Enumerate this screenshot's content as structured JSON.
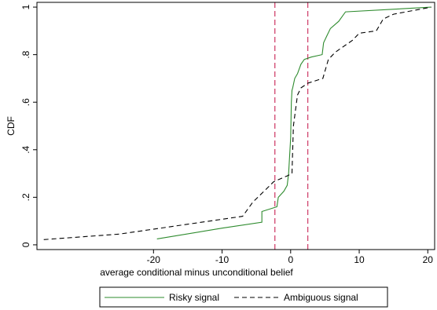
{
  "chart_data": {
    "type": "line",
    "xlabel": "average conditional minus unconditional belief",
    "ylabel": "CDF",
    "xlim": [
      -37,
      21
    ],
    "ylim": [
      -0.02,
      1.02
    ],
    "x_ticks": [
      -20,
      -10,
      0,
      10,
      20
    ],
    "x_tick_labels": [
      "-20",
      "-10",
      "0",
      "10",
      "20"
    ],
    "y_ticks": [
      0,
      0.2,
      0.4,
      0.6,
      0.8,
      1
    ],
    "y_tick_labels": [
      "0",
      ".2",
      ".4",
      ".6",
      ".8",
      "1"
    ],
    "grid": false,
    "legend_position": "bottom",
    "reference_lines": {
      "x": [
        -2.3,
        2.5
      ],
      "color": "#d0436e",
      "style": "dashed"
    },
    "series": [
      {
        "name": "Risky signal",
        "color": "#2e8b2e",
        "style": "solid",
        "points": [
          [
            -19.5,
            0.025
          ],
          [
            -10,
            0.07
          ],
          [
            -4.2,
            0.095
          ],
          [
            -4.2,
            0.14
          ],
          [
            -2,
            0.16
          ],
          [
            -1.8,
            0.2
          ],
          [
            -1,
            0.225
          ],
          [
            -0.5,
            0.25
          ],
          [
            -0.3,
            0.3
          ],
          [
            0,
            0.45
          ],
          [
            0.1,
            0.6
          ],
          [
            0.2,
            0.65
          ],
          [
            0.3,
            0.66
          ],
          [
            0.6,
            0.7
          ],
          [
            1,
            0.72
          ],
          [
            1.5,
            0.76
          ],
          [
            2,
            0.78
          ],
          [
            3,
            0.79
          ],
          [
            4.6,
            0.8
          ],
          [
            4.8,
            0.85
          ],
          [
            5.3,
            0.88
          ],
          [
            5.8,
            0.91
          ],
          [
            7,
            0.94
          ],
          [
            8,
            0.98
          ],
          [
            20.5,
            1.0
          ]
        ]
      },
      {
        "name": "Ambiguous signal",
        "color": "#000000",
        "style": "dashed",
        "points": [
          [
            -36,
            0.022
          ],
          [
            -25,
            0.045
          ],
          [
            -7,
            0.12
          ],
          [
            -5.5,
            0.18
          ],
          [
            -3,
            0.25
          ],
          [
            -2.5,
            0.265
          ],
          [
            -0.5,
            0.29
          ],
          [
            0.2,
            0.3
          ],
          [
            0.4,
            0.5
          ],
          [
            1,
            0.63
          ],
          [
            1.5,
            0.66
          ],
          [
            2.5,
            0.68
          ],
          [
            4.7,
            0.7
          ],
          [
            5,
            0.73
          ],
          [
            5.5,
            0.78
          ],
          [
            6.5,
            0.81
          ],
          [
            7.5,
            0.83
          ],
          [
            9,
            0.86
          ],
          [
            10,
            0.89
          ],
          [
            12.5,
            0.9
          ],
          [
            13.5,
            0.95
          ],
          [
            15,
            0.97
          ],
          [
            20.5,
            1.0
          ]
        ]
      }
    ]
  }
}
